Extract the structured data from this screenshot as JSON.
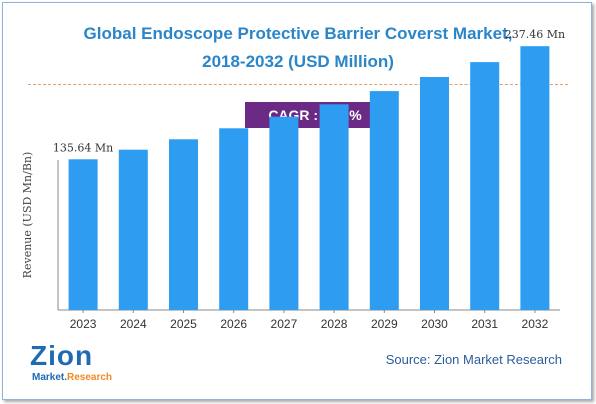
{
  "header": {
    "title_line1": "Global Endoscope Protective Barrier Coverst Market,",
    "title_line2": "2018-2032 (USD Million)"
  },
  "cagr_badge": "CAGR :  6.42%",
  "source": "Source: Zion Market Research",
  "logo": {
    "main": "Zion",
    "sub_prefix": "Market.",
    "sub_accent": "Research"
  },
  "colors": {
    "title": "#2a86c9",
    "bar": "#2e9cf0",
    "badge": "#6b2a86",
    "divider": "#e0a070"
  },
  "chart_data": {
    "type": "bar",
    "categories": [
      "2023",
      "2024",
      "2025",
      "2026",
      "2027",
      "2028",
      "2029",
      "2030",
      "2031",
      "2032"
    ],
    "values": [
      135.64,
      144.3,
      153.6,
      163.5,
      174.0,
      185.1,
      197.0,
      209.7,
      223.1,
      237.46
    ],
    "ylabel": "Revenue (USD Mn/Bn)",
    "xlabel": "",
    "annotations": [
      {
        "index": 0,
        "text": "135.64 Mn"
      },
      {
        "index": 9,
        "text": "237.46 Mn"
      }
    ],
    "ylim": [
      0,
      270
    ],
    "grid": false,
    "legend": false
  }
}
